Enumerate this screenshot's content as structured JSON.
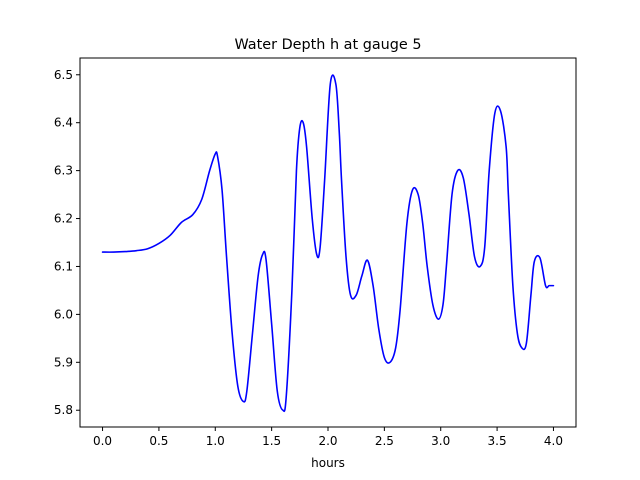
{
  "chart_data": {
    "type": "line",
    "title": "Water Depth h at gauge 5",
    "xlabel": "hours",
    "ylabel": "",
    "xlim": [
      -0.2,
      4.2
    ],
    "ylim": [
      5.765,
      6.535
    ],
    "xticks": [
      0.0,
      0.5,
      1.0,
      1.5,
      2.0,
      2.5,
      3.0,
      3.5,
      4.0
    ],
    "xtick_labels": [
      "0.0",
      "0.5",
      "1.0",
      "1.5",
      "2.0",
      "2.5",
      "3.0",
      "3.5",
      "4.0"
    ],
    "yticks": [
      5.8,
      5.9,
      6.0,
      6.1,
      6.2,
      6.3,
      6.4,
      6.5
    ],
    "ytick_labels": [
      "5.8",
      "5.9",
      "6.0",
      "6.1",
      "6.2",
      "6.3",
      "6.4",
      "6.5"
    ],
    "grid": false,
    "series": [
      {
        "color": "#0000ff",
        "x": [
          0.0,
          0.1,
          0.2,
          0.3,
          0.4,
          0.5,
          0.6,
          0.7,
          0.8,
          0.88,
          0.95,
          1.0,
          1.02,
          1.06,
          1.1,
          1.15,
          1.2,
          1.25,
          1.28,
          1.33,
          1.38,
          1.42,
          1.45,
          1.5,
          1.55,
          1.6,
          1.63,
          1.68,
          1.72,
          1.75,
          1.78,
          1.81,
          1.86,
          1.9,
          1.93,
          1.97,
          2.02,
          2.07,
          2.1,
          2.12,
          2.16,
          2.2,
          2.25,
          2.3,
          2.35,
          2.4,
          2.45,
          2.5,
          2.55,
          2.6,
          2.64,
          2.7,
          2.75,
          2.8,
          2.84,
          2.88,
          2.93,
          2.98,
          3.02,
          3.05,
          3.1,
          3.15,
          3.2,
          3.25,
          3.3,
          3.35,
          3.39,
          3.43,
          3.48,
          3.53,
          3.58,
          3.6,
          3.64,
          3.68,
          3.72,
          3.76,
          3.8,
          3.83,
          3.88,
          3.93,
          3.96,
          3.98,
          4.0
        ],
        "y": [
          6.13,
          6.13,
          6.131,
          6.133,
          6.137,
          6.148,
          6.165,
          6.192,
          6.208,
          6.24,
          6.3,
          6.335,
          6.33,
          6.26,
          6.12,
          5.96,
          5.85,
          5.818,
          5.84,
          5.96,
          6.08,
          6.125,
          6.115,
          5.98,
          5.84,
          5.8,
          5.83,
          6.05,
          6.3,
          6.39,
          6.4,
          6.35,
          6.2,
          6.125,
          6.14,
          6.28,
          6.48,
          6.48,
          6.38,
          6.28,
          6.12,
          6.04,
          6.04,
          6.08,
          6.113,
          6.06,
          5.97,
          5.91,
          5.9,
          5.93,
          6.01,
          6.19,
          6.26,
          6.25,
          6.19,
          6.1,
          6.02,
          5.99,
          6.02,
          6.1,
          6.25,
          6.3,
          6.285,
          6.21,
          6.12,
          6.1,
          6.14,
          6.3,
          6.42,
          6.425,
          6.35,
          6.25,
          6.06,
          5.96,
          5.93,
          5.94,
          6.04,
          6.11,
          6.118,
          6.06,
          6.06,
          6.06,
          6.06
        ]
      }
    ]
  }
}
